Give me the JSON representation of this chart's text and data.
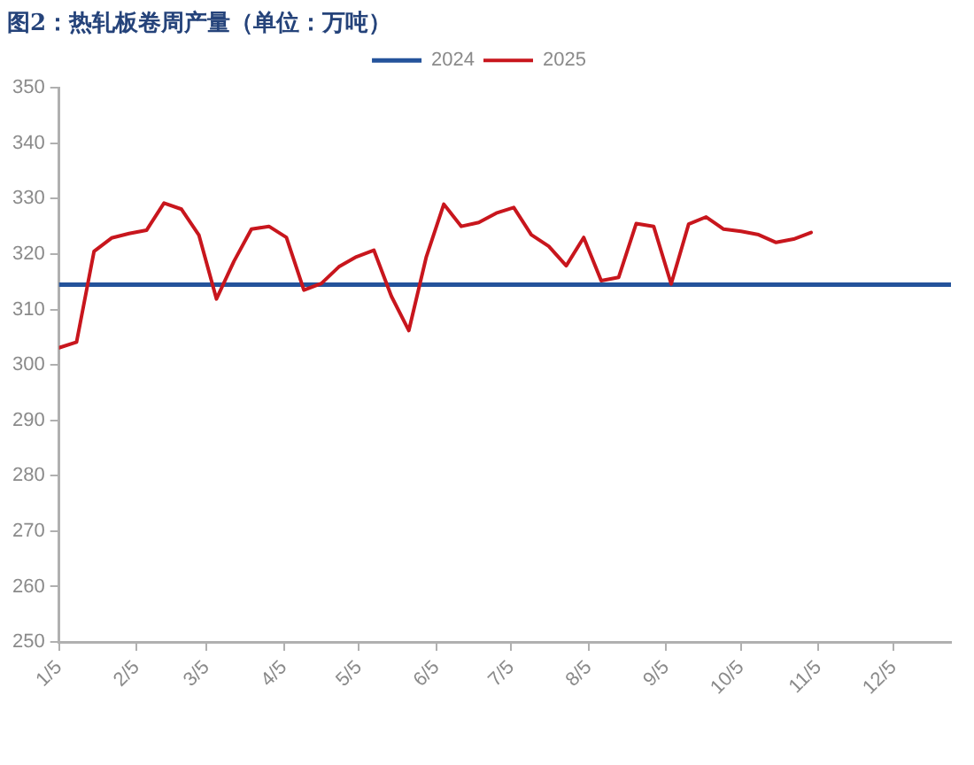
{
  "chart_data": {
    "type": "line",
    "title": "图2：热轧板卷周产量（单位：万吨）",
    "x": [
      "--01-05",
      "--01-12",
      "--01-19",
      "--01-26",
      "--02-02",
      "--02-09",
      "--02-16",
      "--02-23",
      "--03-02",
      "--03-09",
      "--03-16",
      "--03-23",
      "--03-30",
      "--04-06",
      "--04-13",
      "--04-20",
      "--04-27",
      "--05-04",
      "--05-11",
      "--05-18",
      "--05-25",
      "--06-01",
      "--06-08",
      "--06-15",
      "--06-22",
      "--06-29",
      "--07-06",
      "--07-13",
      "--07-20",
      "--07-27",
      "--08-03",
      "--08-10",
      "--08-17",
      "--08-24",
      "--08-31",
      "--09-07",
      "--09-14",
      "--09-21",
      "--09-28",
      "--10-05",
      "--10-12",
      "--10-19",
      "--10-26",
      "--11-02",
      "--11-09",
      "--11-16",
      "--11-23",
      "--11-30",
      "--12-07",
      "--12-14",
      "--12-21",
      "--12-28"
    ],
    "series": [
      {
        "name": "2024",
        "color": "#24539b",
        "values": [
          314.5,
          314.5,
          314.5,
          314.5,
          314.5,
          314.5,
          314.5,
          314.5,
          314.5,
          314.5,
          314.5,
          314.5,
          314.5,
          314.5,
          314.5,
          314.5,
          314.5,
          314.5,
          314.5,
          314.5,
          314.5,
          314.5,
          314.5,
          314.5,
          314.5,
          314.5,
          314.5,
          314.5,
          314.5,
          314.5,
          314.5,
          314.5,
          314.5,
          314.5,
          314.5,
          314.5,
          314.5,
          314.5,
          314.5,
          314.5,
          314.5,
          314.5,
          314.5,
          314.5,
          314.5,
          314.5,
          314.5,
          314.5,
          314.5,
          314.5,
          314.5,
          314.5
        ]
      },
      {
        "name": "2025",
        "color": "#c8161d",
        "values": [
          303.1,
          304.1,
          320.5,
          322.9,
          323.7,
          324.3,
          329.2,
          328.1,
          323.4,
          311.9,
          318.7,
          324.5,
          325.0,
          323.0,
          313.5,
          314.7,
          317.7,
          319.5,
          320.7,
          312.4,
          306.2,
          319.5,
          329.0,
          325.0,
          325.7,
          327.4,
          328.4,
          323.5,
          321.4,
          317.9,
          323.0,
          315.2,
          315.8,
          325.5,
          325.0,
          314.6,
          325.4,
          326.7,
          324.5,
          324.1,
          323.5,
          322.1,
          322.7,
          323.9,
          null,
          null,
          null,
          null,
          null,
          null,
          null,
          null
        ]
      }
    ],
    "xlim": [
      "--01-05",
      "--12-28"
    ],
    "xticks": [
      {
        "value": "--01-05",
        "label": "1/5"
      },
      {
        "value": "--02-05",
        "label": "2/5"
      },
      {
        "value": "--03-05",
        "label": "3/5"
      },
      {
        "value": "--04-05",
        "label": "4/5"
      },
      {
        "value": "--05-05",
        "label": "5/5"
      },
      {
        "value": "--06-05",
        "label": "6/5"
      },
      {
        "value": "--07-05",
        "label": "7/5"
      },
      {
        "value": "--08-05",
        "label": "8/5"
      },
      {
        "value": "--09-05",
        "label": "9/5"
      },
      {
        "value": "--10-05",
        "label": "10/5"
      },
      {
        "value": "--11-05",
        "label": "11/5"
      },
      {
        "value": "--12-05",
        "label": "12/5"
      }
    ],
    "ylim": [
      250,
      350
    ],
    "yticks": [
      250,
      260,
      270,
      280,
      290,
      300,
      310,
      320,
      330,
      340,
      350
    ],
    "legend": "top"
  }
}
